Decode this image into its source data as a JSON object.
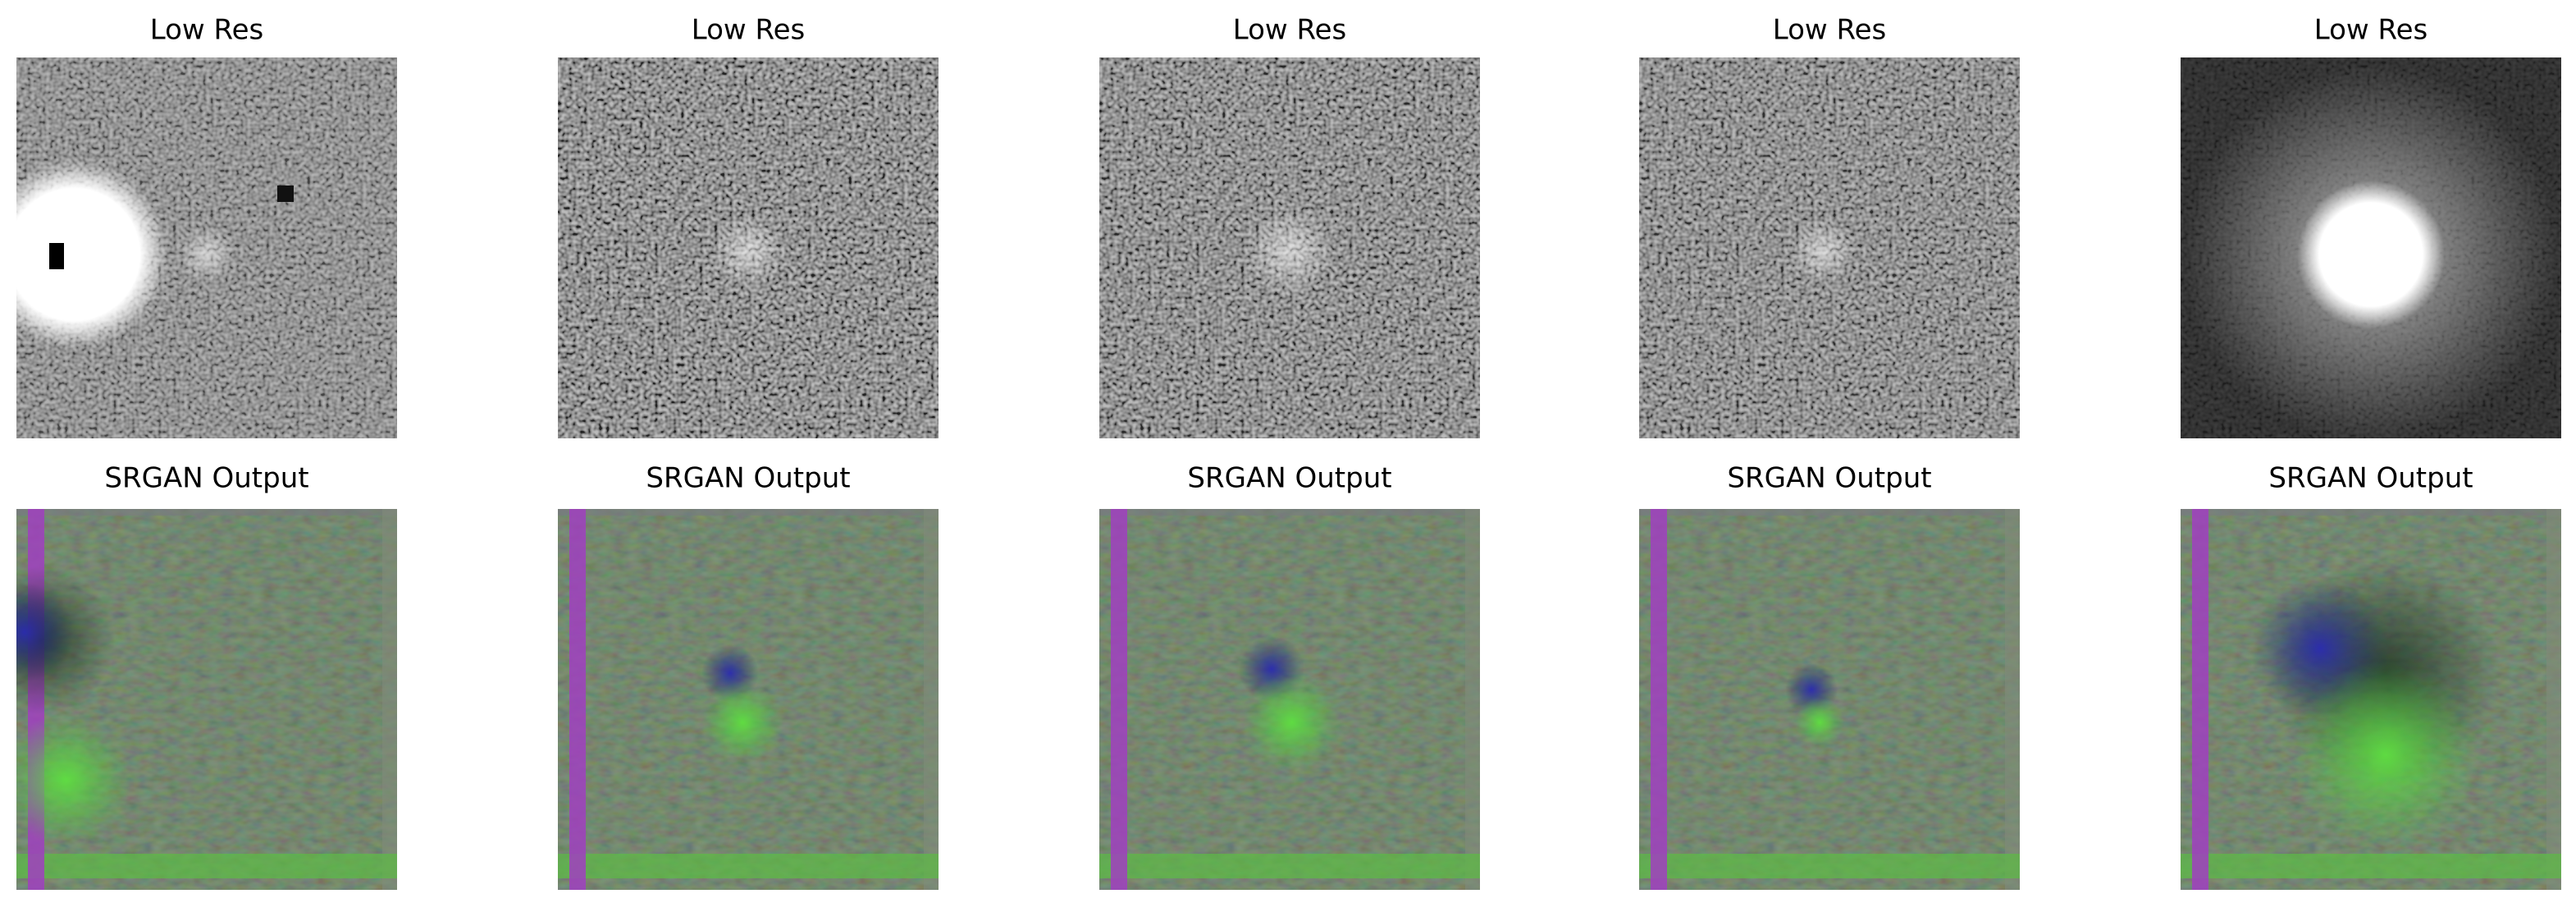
{
  "rows": [
    {
      "titles": [
        "Low Res",
        "Low Res",
        "Low Res",
        "Low Res",
        "Low Res"
      ]
    },
    {
      "titles": [
        "SRGAN Output",
        "SRGAN Output",
        "SRGAN Output",
        "SRGAN Output",
        "SRGAN Output"
      ]
    }
  ]
}
